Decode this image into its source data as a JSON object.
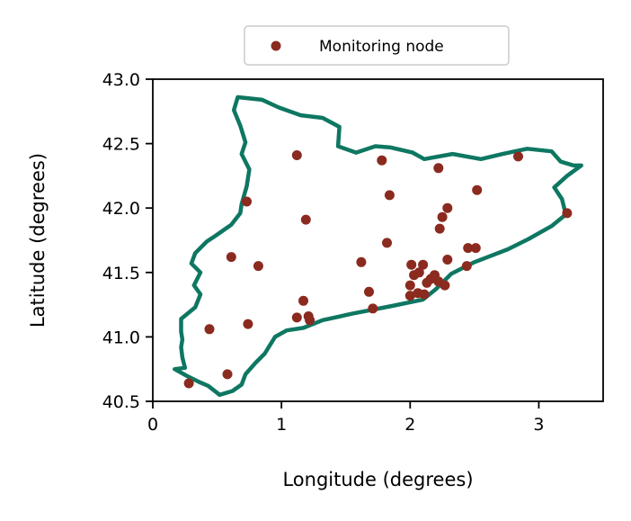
{
  "chart_data": {
    "type": "scatter",
    "title": "",
    "xlabel": "Longitude (degrees)",
    "ylabel": "Latitude (degrees)",
    "xlim": [
      0,
      3.5
    ],
    "ylim": [
      40.5,
      43.0
    ],
    "xticks": [
      0,
      1,
      2,
      3
    ],
    "xtick_labels": [
      "0",
      "1",
      "2",
      "3"
    ],
    "yticks": [
      40.5,
      41.0,
      41.5,
      42.0,
      42.5,
      43.0
    ],
    "ytick_labels": [
      "40.5",
      "41.0",
      "41.5",
      "42.0",
      "42.5",
      "43.0"
    ],
    "grid": false,
    "legend": {
      "placement": "above plot, centered",
      "entries": [
        {
          "label": "Monitoring node",
          "color": "#8b2a1f"
        }
      ]
    },
    "series": [
      {
        "name": "Monitoring node",
        "color": "#8b2a1f",
        "points": [
          [
            1.12,
            42.41
          ],
          [
            1.78,
            42.37
          ],
          [
            2.22,
            42.31
          ],
          [
            2.84,
            42.4
          ],
          [
            1.84,
            42.1
          ],
          [
            2.52,
            42.14
          ],
          [
            0.73,
            42.05
          ],
          [
            1.19,
            41.91
          ],
          [
            2.29,
            42.0
          ],
          [
            2.25,
            41.93
          ],
          [
            3.22,
            41.96
          ],
          [
            2.23,
            41.84
          ],
          [
            1.82,
            41.73
          ],
          [
            0.61,
            41.62
          ],
          [
            0.82,
            41.55
          ],
          [
            1.62,
            41.58
          ],
          [
            2.29,
            41.6
          ],
          [
            2.45,
            41.69
          ],
          [
            2.51,
            41.69
          ],
          [
            2.44,
            41.55
          ],
          [
            2.01,
            41.56
          ],
          [
            2.1,
            41.56
          ],
          [
            2.07,
            41.5
          ],
          [
            2.03,
            41.48
          ],
          [
            2.19,
            41.48
          ],
          [
            2.16,
            41.45
          ],
          [
            2.13,
            41.42
          ],
          [
            2.0,
            41.4
          ],
          [
            2.22,
            41.43
          ],
          [
            2.27,
            41.4
          ],
          [
            1.68,
            41.35
          ],
          [
            1.17,
            41.28
          ],
          [
            2.0,
            41.32
          ],
          [
            2.06,
            41.34
          ],
          [
            2.11,
            41.33
          ],
          [
            1.12,
            41.15
          ],
          [
            1.21,
            41.16
          ],
          [
            1.22,
            41.13
          ],
          [
            1.71,
            41.22
          ],
          [
            0.74,
            41.1
          ],
          [
            0.44,
            41.06
          ],
          [
            0.58,
            40.71
          ],
          [
            0.28,
            40.64
          ]
        ]
      }
    ],
    "boundary": {
      "color": "#0e7762",
      "points": [
        [
          0.66,
          42.86
        ],
        [
          0.85,
          42.84
        ],
        [
          0.98,
          42.78
        ],
        [
          1.15,
          42.72
        ],
        [
          1.32,
          42.7
        ],
        [
          1.45,
          42.63
        ],
        [
          1.44,
          42.48
        ],
        [
          1.58,
          42.43
        ],
        [
          1.73,
          42.48
        ],
        [
          1.85,
          42.47
        ],
        [
          2.02,
          42.43
        ],
        [
          2.11,
          42.38
        ],
        [
          2.33,
          42.42
        ],
        [
          2.55,
          42.38
        ],
        [
          2.72,
          42.42
        ],
        [
          2.91,
          42.46
        ],
        [
          3.1,
          42.44
        ],
        [
          3.17,
          42.36
        ],
        [
          3.27,
          42.33
        ],
        [
          3.33,
          42.33
        ],
        [
          3.22,
          42.25
        ],
        [
          3.12,
          42.16
        ],
        [
          3.18,
          42.07
        ],
        [
          3.21,
          41.95
        ],
        [
          3.1,
          41.86
        ],
        [
          2.92,
          41.76
        ],
        [
          2.76,
          41.68
        ],
        [
          2.5,
          41.58
        ],
        [
          2.32,
          41.49
        ],
        [
          2.2,
          41.37
        ],
        [
          2.1,
          41.29
        ],
        [
          1.86,
          41.24
        ],
        [
          1.55,
          41.18
        ],
        [
          1.32,
          41.13
        ],
        [
          1.17,
          41.07
        ],
        [
          1.04,
          41.05
        ],
        [
          0.95,
          41.0
        ],
        [
          0.87,
          40.87
        ],
        [
          0.8,
          40.8
        ],
        [
          0.72,
          40.71
        ],
        [
          0.69,
          40.63
        ],
        [
          0.62,
          40.58
        ],
        [
          0.52,
          40.55
        ],
        [
          0.43,
          40.62
        ],
        [
          0.36,
          40.65
        ],
        [
          0.26,
          40.7
        ],
        [
          0.17,
          40.75
        ],
        [
          0.25,
          40.76
        ],
        [
          0.23,
          40.84
        ],
        [
          0.22,
          40.92
        ],
        [
          0.23,
          40.98
        ],
        [
          0.22,
          41.04
        ],
        [
          0.22,
          41.14
        ],
        [
          0.33,
          41.23
        ],
        [
          0.37,
          41.33
        ],
        [
          0.32,
          41.4
        ],
        [
          0.37,
          41.5
        ],
        [
          0.3,
          41.57
        ],
        [
          0.33,
          41.65
        ],
        [
          0.42,
          41.74
        ],
        [
          0.48,
          41.78
        ],
        [
          0.61,
          41.87
        ],
        [
          0.68,
          41.96
        ],
        [
          0.69,
          42.03
        ],
        [
          0.73,
          42.17
        ],
        [
          0.75,
          42.3
        ],
        [
          0.69,
          42.42
        ],
        [
          0.72,
          42.51
        ],
        [
          0.68,
          42.64
        ],
        [
          0.63,
          42.76
        ],
        [
          0.66,
          42.86
        ]
      ]
    }
  }
}
